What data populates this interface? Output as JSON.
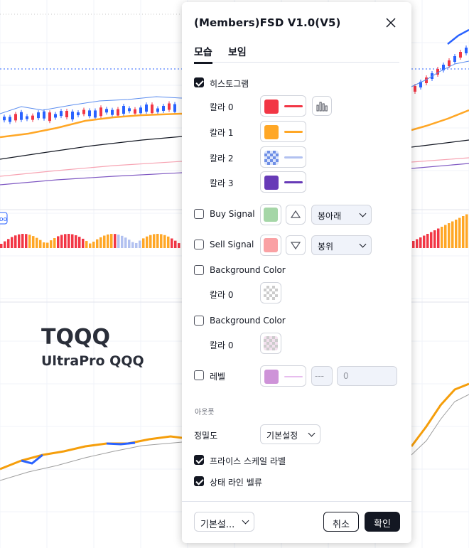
{
  "background_chart": {
    "logo_title": "TQQQ",
    "logo_subtitle": "UltraPro QQQ",
    "legend_badge": "oo"
  },
  "dialog": {
    "title": "(Members)FSD V1.0(V5)",
    "tabs": [
      {
        "label": "모습",
        "active": true
      },
      {
        "label": "보임",
        "active": false
      }
    ],
    "histogram": {
      "label": "히스토그램",
      "checked": true,
      "colors": [
        {
          "label": "칼라 0",
          "color": "#f23645",
          "line": "#f23645"
        },
        {
          "label": "칼라 1",
          "color": "#ffa726",
          "line": "#ffa726"
        },
        {
          "label": "칼라 2",
          "color": "checker-blue",
          "line": "#b2c1f0"
        },
        {
          "label": "칼라 3",
          "color": "#673ab7",
          "line": "#673ab7"
        }
      ]
    },
    "buy_signal": {
      "label": "Buy Signal",
      "checked": false,
      "color": "#a5d6a7",
      "shape": "봉아래"
    },
    "sell_signal": {
      "label": "Sell Signal",
      "checked": false,
      "color": "#faa1a4",
      "shape": "봉위"
    },
    "background1": {
      "label": "Background Color",
      "checked": false,
      "color_label": "칼라 0"
    },
    "background2": {
      "label": "Background Color",
      "checked": false,
      "color_label": "칼라 0"
    },
    "level": {
      "label": "레벨",
      "checked": false,
      "color": "#ce93d8",
      "line_style": "---",
      "value": "0"
    },
    "outputs_section": "아웃풋",
    "precision": {
      "label": "정밀도",
      "value": "기본설정"
    },
    "price_scale_label": {
      "label": "프라이스 스케일 라벨",
      "checked": true
    },
    "status_line_values": {
      "label": "상태 라인 벨류",
      "checked": true
    },
    "footer": {
      "defaults": "기본설...",
      "cancel": "취소",
      "ok": "확인"
    }
  }
}
